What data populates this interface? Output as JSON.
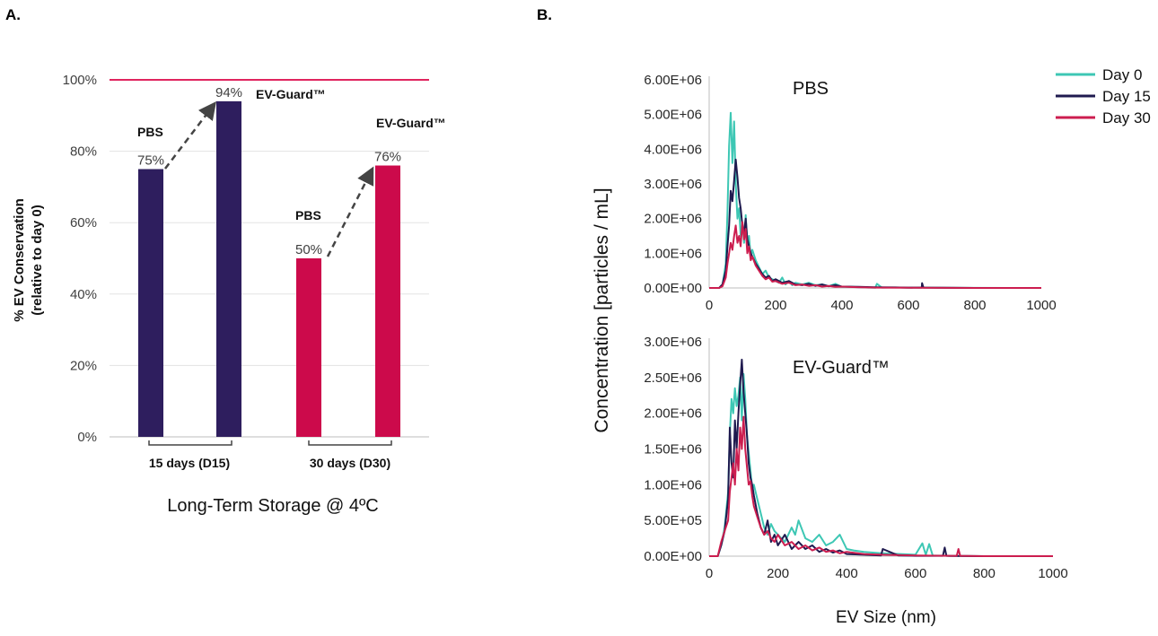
{
  "panel_a_label": "A.",
  "panel_b_label": "B.",
  "chart_data": [
    {
      "type": "bar",
      "title": "",
      "ylabel": "% EV Conservation\n(relative to day 0)",
      "ylabel_line1": "% EV Conservation",
      "ylabel_line2": "(relative to day 0)",
      "xlabel": "Long-Term Storage @ 4ºC",
      "ylim": [
        0,
        100
      ],
      "yticks": [
        "0%",
        "20%",
        "40%",
        "60%",
        "80%",
        "100%"
      ],
      "reference_line": {
        "value": 100,
        "color": "#e0245e"
      },
      "groups": [
        {
          "label": "15 days (D15)",
          "bars": [
            {
              "name": "PBS",
              "value": 75,
              "value_label": "75%",
              "color": "#2e1e5e"
            },
            {
              "name": "EV-Guard™",
              "value": 94,
              "value_label": "94%",
              "color": "#2e1e5e"
            }
          ]
        },
        {
          "label": "30 days (D30)",
          "bars": [
            {
              "name": "PBS",
              "value": 50,
              "value_label": "50%",
              "color": "#cc0a4b"
            },
            {
              "name": "EV-Guard™",
              "value": 76,
              "value_label": "76%",
              "color": "#cc0a4b"
            }
          ]
        }
      ]
    },
    {
      "type": "line",
      "title": "PBS",
      "ylabel": "Concentration [particles / mL]",
      "xlabel": "",
      "xlim": [
        0,
        1000
      ],
      "ylim": [
        0,
        6000000
      ],
      "xticks": [
        "0",
        "200",
        "400",
        "600",
        "800",
        "1000"
      ],
      "yticks": [
        "0.00E+00",
        "1.00E+06",
        "2.00E+06",
        "3.00E+06",
        "4.00E+06",
        "5.00E+06",
        "6.00E+06"
      ],
      "series": [
        {
          "name": "Day 0",
          "color": "#3dc7b4",
          "x": [
            0,
            30,
            40,
            50,
            55,
            60,
            65,
            70,
            75,
            80,
            85,
            90,
            95,
            100,
            105,
            110,
            115,
            120,
            125,
            130,
            140,
            150,
            160,
            170,
            180,
            190,
            200,
            210,
            220,
            230,
            240,
            250,
            260,
            280,
            300,
            320,
            340,
            360,
            380,
            400,
            420,
            450,
            480,
            500,
            505,
            520,
            560,
            600,
            640,
            700,
            800,
            900,
            1000
          ],
          "y": [
            0,
            0,
            80000,
            700000,
            2200000,
            4100000,
            5050000,
            3600000,
            4800000,
            3000000,
            2000000,
            2300000,
            1500000,
            1900000,
            1300000,
            2100000,
            1200000,
            1500000,
            900000,
            1100000,
            800000,
            600000,
            400000,
            500000,
            300000,
            250000,
            200000,
            150000,
            300000,
            100000,
            200000,
            80000,
            150000,
            100000,
            150000,
            80000,
            100000,
            50000,
            120000,
            30000,
            40000,
            20000,
            10000,
            5000,
            120000,
            10000,
            15000,
            8000,
            12000,
            5000,
            2000,
            0,
            0
          ]
        },
        {
          "name": "Day 15",
          "color": "#1f1a4f",
          "x": [
            0,
            30,
            40,
            50,
            55,
            60,
            65,
            70,
            75,
            80,
            85,
            90,
            95,
            100,
            105,
            110,
            115,
            120,
            125,
            130,
            140,
            150,
            160,
            170,
            180,
            190,
            200,
            220,
            240,
            260,
            280,
            300,
            320,
            340,
            360,
            380,
            400,
            450,
            500,
            550,
            600,
            640,
            641,
            645,
            700,
            800,
            1000
          ],
          "y": [
            0,
            0,
            100000,
            500000,
            1200000,
            1800000,
            2800000,
            2500000,
            3100000,
            3700000,
            3200000,
            2600000,
            2300000,
            1800000,
            1600000,
            2000000,
            1400000,
            1200000,
            1000000,
            900000,
            700000,
            550000,
            400000,
            300000,
            350000,
            200000,
            250000,
            150000,
            200000,
            100000,
            80000,
            120000,
            60000,
            100000,
            50000,
            80000,
            40000,
            30000,
            20000,
            15000,
            10000,
            10000,
            140000,
            10000,
            5000,
            0,
            0
          ]
        },
        {
          "name": "Day 30",
          "color": "#cc1d4f",
          "x": [
            0,
            30,
            40,
            50,
            55,
            60,
            65,
            70,
            75,
            80,
            85,
            90,
            95,
            100,
            105,
            110,
            115,
            120,
            125,
            130,
            140,
            150,
            160,
            170,
            180,
            190,
            200,
            220,
            240,
            260,
            280,
            300,
            320,
            340,
            360,
            380,
            400,
            450,
            500,
            600,
            700,
            800,
            1000
          ],
          "y": [
            0,
            0,
            50000,
            300000,
            700000,
            1000000,
            1300000,
            1100000,
            1500000,
            1800000,
            1300000,
            1500000,
            1200000,
            1900000,
            1400000,
            1700000,
            1000000,
            1200000,
            800000,
            900000,
            650000,
            500000,
            350000,
            250000,
            300000,
            180000,
            200000,
            120000,
            150000,
            80000,
            100000,
            60000,
            80000,
            40000,
            60000,
            30000,
            40000,
            20000,
            10000,
            5000,
            2000,
            0,
            0
          ]
        }
      ]
    },
    {
      "type": "line",
      "title": "EV-Guard™",
      "ylabel": "Concentration [particles / mL]",
      "xlabel": "EV Size (nm)",
      "xlim": [
        0,
        1000
      ],
      "ylim": [
        0,
        3000000
      ],
      "xticks": [
        "0",
        "200",
        "400",
        "600",
        "800",
        "1000"
      ],
      "yticks": [
        "0.00E+00",
        "5.00E+05",
        "1.00E+06",
        "1.50E+06",
        "2.00E+06",
        "2.50E+06",
        "3.00E+06"
      ],
      "series": [
        {
          "name": "Day 0",
          "color": "#3dc7b4",
          "x": [
            0,
            25,
            35,
            45,
            55,
            60,
            65,
            70,
            75,
            80,
            85,
            90,
            95,
            100,
            105,
            110,
            115,
            120,
            125,
            130,
            140,
            150,
            160,
            170,
            180,
            190,
            200,
            220,
            240,
            250,
            260,
            280,
            300,
            320,
            340,
            360,
            380,
            400,
            420,
            450,
            500,
            600,
            620,
            630,
            640,
            650,
            700,
            800,
            1000
          ],
          "y": [
            0,
            0,
            150000,
            400000,
            900000,
            1700000,
            2200000,
            2000000,
            2350000,
            2100000,
            2250000,
            2500000,
            1900000,
            2550000,
            2200000,
            1700000,
            1450000,
            1200000,
            950000,
            1000000,
            800000,
            600000,
            400000,
            300000,
            450000,
            350000,
            300000,
            200000,
            400000,
            300000,
            500000,
            250000,
            200000,
            300000,
            150000,
            200000,
            300000,
            100000,
            80000,
            60000,
            40000,
            20000,
            180000,
            20000,
            170000,
            10000,
            5000,
            0,
            0
          ]
        },
        {
          "name": "Day 15",
          "color": "#1f1a4f",
          "x": [
            0,
            25,
            35,
            45,
            55,
            60,
            65,
            70,
            75,
            80,
            85,
            90,
            95,
            100,
            105,
            110,
            115,
            120,
            125,
            130,
            140,
            150,
            160,
            170,
            180,
            190,
            200,
            220,
            240,
            260,
            280,
            300,
            320,
            340,
            360,
            380,
            400,
            450,
            500,
            505,
            550,
            600,
            680,
            685,
            690,
            700,
            800,
            1000
          ],
          "y": [
            0,
            0,
            150000,
            350000,
            800000,
            1800000,
            1300000,
            1100000,
            1900000,
            1500000,
            2000000,
            2400000,
            2750000,
            2300000,
            2000000,
            1700000,
            1300000,
            1100000,
            1000000,
            850000,
            600000,
            400000,
            300000,
            500000,
            200000,
            300000,
            150000,
            300000,
            100000,
            200000,
            100000,
            150000,
            60000,
            100000,
            50000,
            80000,
            30000,
            20000,
            10000,
            100000,
            10000,
            5000,
            5000,
            120000,
            5000,
            2000,
            0,
            0
          ]
        },
        {
          "name": "Day 30",
          "color": "#cc1d4f",
          "x": [
            0,
            25,
            35,
            45,
            55,
            60,
            65,
            70,
            75,
            80,
            85,
            90,
            95,
            100,
            105,
            110,
            115,
            120,
            125,
            130,
            140,
            150,
            160,
            170,
            180,
            190,
            200,
            220,
            240,
            260,
            280,
            300,
            320,
            340,
            360,
            380,
            400,
            450,
            500,
            600,
            700,
            720,
            725,
            730,
            800,
            1000
          ],
          "y": [
            0,
            0,
            200000,
            350000,
            500000,
            900000,
            1100000,
            1300000,
            1000000,
            1500000,
            1200000,
            1800000,
            1500000,
            1950000,
            1500000,
            1250000,
            1000000,
            1050000,
            850000,
            700000,
            550000,
            400000,
            300000,
            350000,
            250000,
            200000,
            300000,
            150000,
            200000,
            100000,
            150000,
            80000,
            120000,
            60000,
            80000,
            40000,
            60000,
            30000,
            20000,
            10000,
            5000,
            5000,
            100000,
            5000,
            0,
            0
          ]
        }
      ]
    }
  ]
}
